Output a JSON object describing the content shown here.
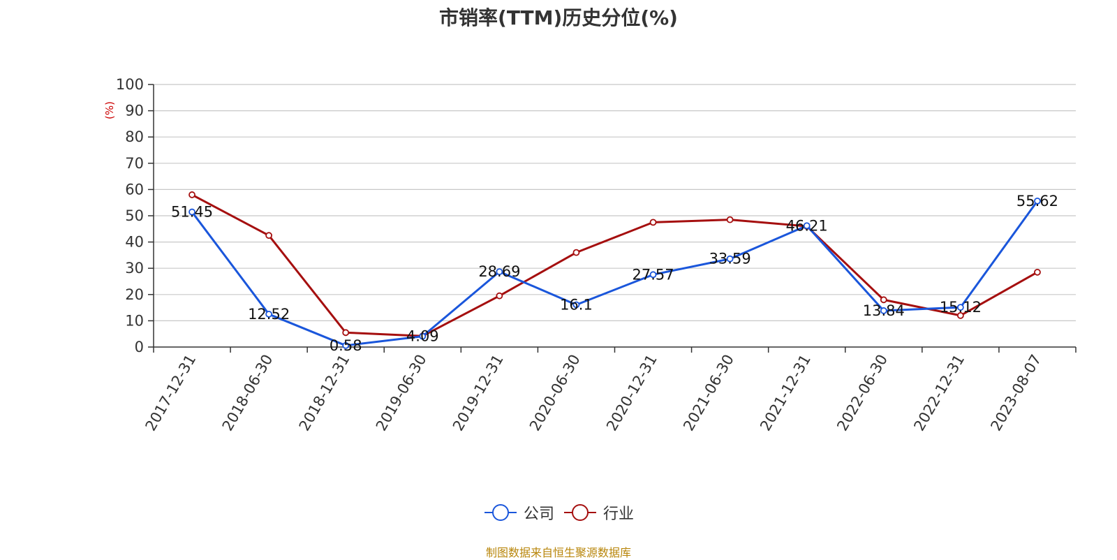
{
  "chart_data": {
    "type": "line",
    "title": "市销率(TTM)历史分位(%)",
    "ylabel": "(%)",
    "xlabel": "",
    "ylim": [
      0,
      100
    ],
    "yticks": [
      0,
      10,
      20,
      30,
      40,
      50,
      60,
      70,
      80,
      90,
      100
    ],
    "grid": true,
    "legend_position": "bottom",
    "categories": [
      "2017-12-31",
      "2018-06-30",
      "2018-12-31",
      "2019-06-30",
      "2019-12-31",
      "2020-06-30",
      "2020-12-31",
      "2021-06-30",
      "2021-12-31",
      "2022-06-30",
      "2022-12-31",
      "2023-08-07"
    ],
    "series": [
      {
        "name": "公司",
        "color": "#1a56db",
        "values": [
          51.45,
          12.52,
          0.58,
          4.09,
          28.69,
          16.1,
          27.57,
          33.59,
          46.21,
          13.84,
          15.12,
          55.62
        ],
        "labels": [
          "51.45",
          "12.52",
          "0.58",
          "4.09",
          "28.69",
          "16.1",
          "27.57",
          "33.59",
          "46.21",
          "13.84",
          "15.12",
          "55.62"
        ]
      },
      {
        "name": "行业",
        "color": "#a50f0f",
        "values": [
          58,
          42.5,
          5.5,
          4.2,
          19.5,
          36,
          47.5,
          48.5,
          46,
          18,
          12,
          28.5
        ]
      }
    ]
  },
  "footer": "制图数据来自恒生聚源数据库"
}
